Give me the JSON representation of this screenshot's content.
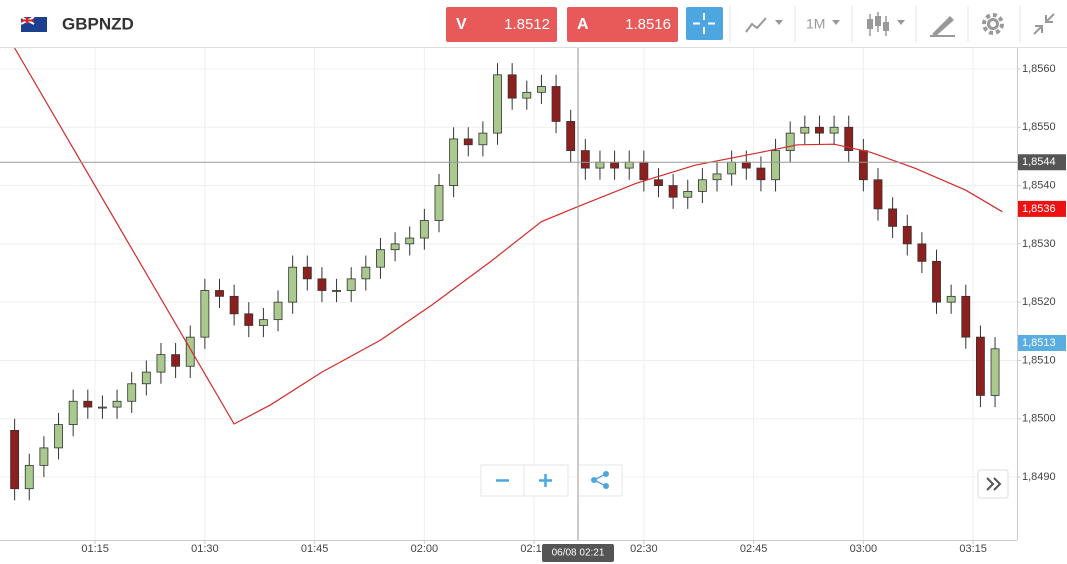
{
  "toolbar": {
    "symbol": "GBPNZD",
    "sell": {
      "label": "V",
      "price": "1.8512"
    },
    "buy": {
      "label": "A",
      "price": "1.8516"
    },
    "timeframe": "1M"
  },
  "chart_data": {
    "type": "candlestick",
    "x": [
      "01:04",
      "01:06",
      "01:08",
      "01:10",
      "01:12",
      "01:14",
      "01:16",
      "01:18",
      "01:20",
      "01:22",
      "01:24",
      "01:26",
      "01:28",
      "01:30",
      "01:32",
      "01:34",
      "01:36",
      "01:38",
      "01:40",
      "01:42",
      "01:44",
      "01:46",
      "01:48",
      "01:50",
      "01:52",
      "01:54",
      "01:56",
      "01:58",
      "02:00",
      "02:02",
      "02:04",
      "02:06",
      "02:08",
      "02:10",
      "02:12",
      "02:14",
      "02:16",
      "02:18",
      "02:20",
      "02:22",
      "02:24",
      "02:26",
      "02:28",
      "02:30",
      "02:32",
      "02:34",
      "02:36",
      "02:38",
      "02:40",
      "02:42",
      "02:44",
      "02:46",
      "02:48",
      "02:50",
      "02:52",
      "02:54",
      "02:56",
      "02:58",
      "03:00",
      "03:02",
      "03:04",
      "03:06",
      "03:08",
      "03:10",
      "03:12",
      "03:14",
      "03:16",
      "03:18"
    ],
    "open": [
      1.8498,
      1.8488,
      1.8492,
      1.8495,
      1.8499,
      1.8503,
      1.8502,
      1.8502,
      1.8503,
      1.8506,
      1.8508,
      1.8511,
      1.8509,
      1.8514,
      1.8522,
      1.8521,
      1.8518,
      1.8516,
      1.8517,
      1.852,
      1.8526,
      1.8524,
      1.8522,
      1.8522,
      1.8524,
      1.8526,
      1.8529,
      1.853,
      1.8531,
      1.8534,
      1.854,
      1.8548,
      1.8547,
      1.8549,
      1.8559,
      1.8555,
      1.8556,
      1.8557,
      1.8551,
      1.8546,
      1.8543,
      1.8544,
      1.8543,
      1.8544,
      1.8541,
      1.854,
      1.8538,
      1.8539,
      1.8541,
      1.8542,
      1.8544,
      1.8543,
      1.8541,
      1.8546,
      1.8549,
      1.855,
      1.8549,
      1.855,
      1.8546,
      1.8541,
      1.8536,
      1.8533,
      1.853,
      1.8527,
      1.852,
      1.8521,
      1.8514,
      1.8504
    ],
    "high": [
      1.85,
      1.8494,
      1.8497,
      1.8501,
      1.8505,
      1.8505,
      1.8504,
      1.8505,
      1.8508,
      1.851,
      1.8513,
      1.8513,
      1.8516,
      1.8524,
      1.8524,
      1.8523,
      1.852,
      1.8519,
      1.8522,
      1.8528,
      1.8528,
      1.8526,
      1.8524,
      1.8526,
      1.8528,
      1.8531,
      1.8532,
      1.8533,
      1.8536,
      1.8542,
      1.855,
      1.855,
      1.8551,
      1.8561,
      1.8561,
      1.8558,
      1.8559,
      1.8559,
      1.8553,
      1.8548,
      1.8546,
      1.8546,
      1.8546,
      1.8546,
      1.8543,
      1.8542,
      1.8541,
      1.8543,
      1.8544,
      1.8546,
      1.8546,
      1.8545,
      1.8548,
      1.8551,
      1.8552,
      1.8552,
      1.8552,
      1.8552,
      1.8548,
      1.8543,
      1.8538,
      1.8535,
      1.8532,
      1.8529,
      1.8523,
      1.8523,
      1.8516,
      1.8514
    ],
    "low": [
      1.8486,
      1.8486,
      1.849,
      1.8493,
      1.8497,
      1.85,
      1.85,
      1.85,
      1.8501,
      1.8504,
      1.8506,
      1.8507,
      1.8507,
      1.8512,
      1.8519,
      1.8516,
      1.8514,
      1.8514,
      1.8515,
      1.8518,
      1.8522,
      1.852,
      1.852,
      1.852,
      1.8522,
      1.8524,
      1.8527,
      1.8528,
      1.8529,
      1.8532,
      1.8538,
      1.8545,
      1.8545,
      1.8547,
      1.8553,
      1.8553,
      1.8554,
      1.8549,
      1.8544,
      1.8541,
      1.8541,
      1.8541,
      1.8541,
      1.8539,
      1.8538,
      1.8536,
      1.8536,
      1.8537,
      1.8539,
      1.854,
      1.8541,
      1.8539,
      1.8539,
      1.8544,
      1.8547,
      1.8547,
      1.8547,
      1.8544,
      1.8539,
      1.8534,
      1.8531,
      1.8528,
      1.8525,
      1.8518,
      1.8518,
      1.8512,
      1.8502,
      1.8502
    ],
    "close": [
      1.8488,
      1.8492,
      1.8495,
      1.8499,
      1.8503,
      1.8502,
      1.8502,
      1.8503,
      1.8506,
      1.8508,
      1.8511,
      1.8509,
      1.8514,
      1.8522,
      1.8521,
      1.8518,
      1.8516,
      1.8517,
      1.852,
      1.8526,
      1.8524,
      1.8522,
      1.8522,
      1.8524,
      1.8526,
      1.8529,
      1.853,
      1.8531,
      1.8534,
      1.854,
      1.8548,
      1.8547,
      1.8549,
      1.8559,
      1.8555,
      1.8556,
      1.8557,
      1.8551,
      1.8546,
      1.8543,
      1.8544,
      1.8543,
      1.8544,
      1.8541,
      1.854,
      1.8538,
      1.8539,
      1.8541,
      1.8542,
      1.8544,
      1.8543,
      1.8541,
      1.8546,
      1.8549,
      1.855,
      1.8549,
      1.855,
      1.8546,
      1.8541,
      1.8536,
      1.8533,
      1.853,
      1.8527,
      1.852,
      1.8521,
      1.8514,
      1.8504,
      1.8512
    ],
    "up_color": "#a9c98f",
    "down_color": "#8e1f1f",
    "ma": {
      "color": "#d42a2a",
      "x": [
        "01:04",
        "01:34",
        "01:39",
        "01:46",
        "01:54",
        "02:01",
        "02:09",
        "02:16",
        "02:21",
        "02:29",
        "02:37",
        "02:46",
        "02:51",
        "02:56",
        "03:01",
        "03:07",
        "03:14",
        "03:19"
      ],
      "values": [
        1.85636,
        1.84991,
        1.85024,
        1.8508,
        1.85135,
        1.85195,
        1.85269,
        1.85338,
        1.85364,
        1.85404,
        1.85435,
        1.85457,
        1.8547,
        1.85471,
        1.85457,
        1.8543,
        1.85392,
        1.85355
      ]
    },
    "xlim": [
      "01:02",
      "03:21"
    ],
    "ylim": [
      1.84792,
      1.85636
    ],
    "xticks": [
      "01:15",
      "01:30",
      "01:45",
      "02:00",
      "02:15",
      "02:30",
      "02:45",
      "03:00",
      "03:15"
    ],
    "yticks": [
      {
        "value": 1.849,
        "label": "1,8490"
      },
      {
        "value": 1.85,
        "label": "1,8500"
      },
      {
        "value": 1.851,
        "label": "1,8510"
      },
      {
        "value": 1.852,
        "label": "1,8520"
      },
      {
        "value": 1.853,
        "label": "1,8530"
      },
      {
        "value": 1.854,
        "label": "1,8540"
      },
      {
        "value": 1.855,
        "label": "1,8550"
      },
      {
        "value": 1.856,
        "label": "1,8560"
      }
    ],
    "grid": true,
    "price_tags": [
      {
        "value": 1.8544,
        "label": "1,8544",
        "color": "#555555"
      },
      {
        "value": 1.8536,
        "label": "1,8536",
        "color": "#ee1111"
      },
      {
        "value": 1.8513,
        "label": "1,8513",
        "color": "#5aade0"
      }
    ],
    "crosshair": {
      "x": "02:21",
      "y": 1.8544,
      "label": "06/08 02:21"
    }
  }
}
